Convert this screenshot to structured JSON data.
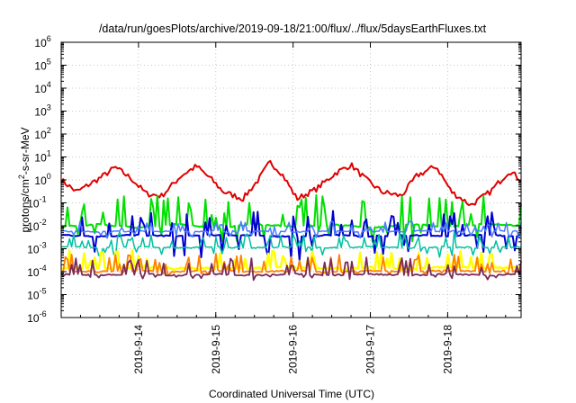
{
  "chart_data": {
    "type": "line",
    "title": "/data/run/goesPlots/archive/2019-09-18/21:00/flux/../flux/5daysEarthFluxes.txt",
    "xlabel": "Coordinated Universal Time (UTC)",
    "ylabel_parts": [
      "protons/cm",
      "2",
      "-s-sr-MeV"
    ],
    "y_scale": "log",
    "ylim": [
      1e-06,
      1000000.0
    ],
    "y_ticks": [
      {
        "mantissa": "10",
        "exp": "-6"
      },
      {
        "mantissa": "10",
        "exp": "-5"
      },
      {
        "mantissa": "10",
        "exp": "-4"
      },
      {
        "mantissa": "10",
        "exp": "-3"
      },
      {
        "mantissa": "10",
        "exp": "-2"
      },
      {
        "mantissa": "10",
        "exp": "-1"
      },
      {
        "mantissa": "10",
        "exp": "0"
      },
      {
        "mantissa": "10",
        "exp": "1"
      },
      {
        "mantissa": "10",
        "exp": "2"
      },
      {
        "mantissa": "10",
        "exp": "3"
      },
      {
        "mantissa": "10",
        "exp": "4"
      },
      {
        "mantissa": "10",
        "exp": "5"
      },
      {
        "mantissa": "10",
        "exp": "6"
      }
    ],
    "x_ticks": [
      "2019-9-14",
      "2019-9-15",
      "2019-9-16",
      "2019-9-17",
      "2019-9-18"
    ],
    "xlim_days": [
      "2019-09-13T21:00",
      "2019-09-18T21:00"
    ],
    "grid": true,
    "legend": "none",
    "series": [
      {
        "color": "#e00000",
        "x": [
          13.0,
          13.2,
          13.5,
          13.7,
          13.9,
          14.1,
          14.3,
          14.55,
          14.75,
          14.95,
          15.1,
          15.35,
          15.55,
          15.7,
          15.85,
          16.05,
          16.3,
          16.55,
          16.75,
          16.95,
          17.15,
          17.4,
          17.6,
          17.85,
          18.05,
          18.3,
          18.55,
          18.8,
          18.95
        ],
        "values": [
          1.0,
          0.3,
          1.2,
          3.5,
          1.2,
          0.25,
          0.2,
          1.5,
          4.0,
          1.0,
          0.3,
          0.15,
          1.0,
          6.0,
          2.0,
          0.15,
          0.4,
          2.0,
          4.5,
          1.0,
          0.3,
          0.2,
          1.5,
          4.0,
          0.3,
          0.08,
          0.3,
          2.5,
          1.0
        ]
      },
      {
        "color": "#00e000",
        "x": [
          13.0,
          13.5,
          14.0,
          14.5,
          15.0,
          15.5,
          16.0,
          16.5,
          17.0,
          17.5,
          18.0,
          18.5,
          18.95
        ],
        "values": [
          0.009,
          0.012,
          0.008,
          0.012,
          0.008,
          0.012,
          0.009,
          0.012,
          0.008,
          0.012,
          0.009,
          0.012,
          0.01
        ]
      },
      {
        "color": "#0000d0",
        "x": [
          13.0,
          13.5,
          14.0,
          14.5,
          15.0,
          15.5,
          16.0,
          16.5,
          17.0,
          17.5,
          18.0,
          18.5,
          18.95
        ],
        "values": [
          0.004,
          0.0035,
          0.004,
          0.0035,
          0.004,
          0.0038,
          0.0033,
          0.004,
          0.0035,
          0.004,
          0.0035,
          0.004,
          0.0035
        ]
      },
      {
        "color": "#4a7cff",
        "x": [
          13.0,
          13.5,
          14.0,
          14.5,
          15.0,
          15.5,
          16.0,
          16.5,
          17.0,
          17.5,
          18.0,
          18.5,
          18.95
        ],
        "values": [
          0.006,
          0.0055,
          0.006,
          0.0055,
          0.006,
          0.0058,
          0.0055,
          0.006,
          0.0055,
          0.006,
          0.0058,
          0.006,
          0.0058
        ]
      },
      {
        "color": "#00c0a0",
        "x": [
          13.0,
          13.5,
          14.0,
          14.5,
          15.0,
          15.5,
          16.0,
          16.5,
          17.0,
          17.5,
          18.0,
          18.5,
          18.95
        ],
        "values": [
          0.0012,
          0.0011,
          0.0012,
          0.0011,
          0.0012,
          0.0011,
          0.0012,
          0.0011,
          0.0012,
          0.0011,
          0.0012,
          0.0011,
          0.0012
        ]
      },
      {
        "color": "#ffff00",
        "x": [
          13.0,
          13.5,
          14.0,
          14.5,
          15.0,
          15.5,
          16.0,
          16.5,
          17.0,
          17.5,
          18.0,
          18.5,
          18.95
        ],
        "values": [
          0.00015,
          0.00014,
          0.00016,
          0.00014,
          0.00015,
          0.00014,
          0.00016,
          0.00014,
          0.00015,
          0.00014,
          0.00016,
          0.00015,
          0.00015
        ]
      },
      {
        "color": "#ff8000",
        "x": [
          13.0,
          13.5,
          14.0,
          14.5,
          15.0,
          15.5,
          16.0,
          16.5,
          17.0,
          17.5,
          18.0,
          18.5,
          18.95
        ],
        "values": [
          0.00011,
          0.0001,
          0.00011,
          0.0001,
          0.00011,
          0.0001,
          0.00011,
          0.0001,
          0.00011,
          0.0001,
          0.00011,
          0.0001,
          0.00011
        ]
      },
      {
        "color": "#7a2a5a",
        "x": [
          13.0,
          13.5,
          14.0,
          14.5,
          15.0,
          15.5,
          16.0,
          16.5,
          17.0,
          17.5,
          18.0,
          18.5,
          18.95
        ],
        "values": [
          8e-05,
          7e-05,
          8e-05,
          7e-05,
          8e-05,
          7e-05,
          8e-05,
          7e-05,
          8e-05,
          7e-05,
          8e-05,
          7e-05,
          8e-05
        ]
      }
    ]
  }
}
